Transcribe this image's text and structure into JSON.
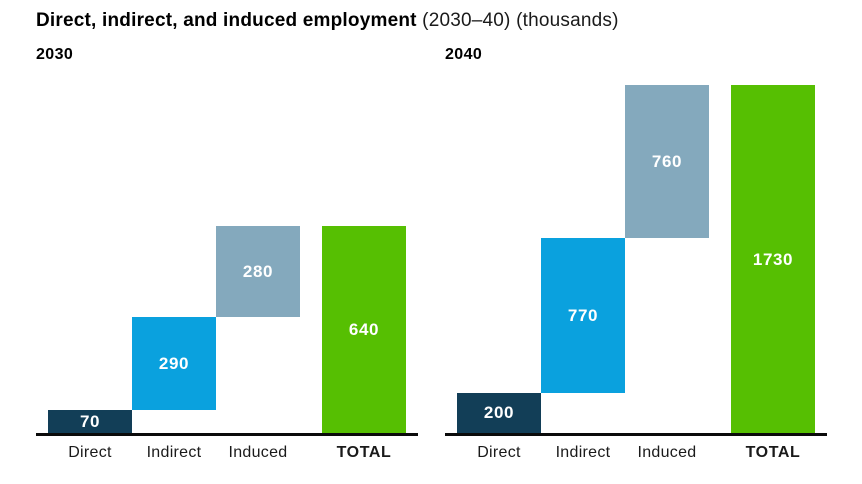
{
  "title": {
    "bold": "Direct, indirect, and induced employment",
    "regular": " (2030–40) (thousands)"
  },
  "colors": {
    "direct": "#123e57",
    "indirect": "#0aa1de",
    "induced": "#84a9bd",
    "total": "#56bf02",
    "axis": "#0b0b0b",
    "value_label": "#ffffff"
  },
  "chart_data": [
    {
      "type": "bar",
      "subtype": "waterfall",
      "year_label": "2030",
      "categories": [
        "Direct",
        "Indirect",
        "Induced",
        "TOTAL"
      ],
      "series": [
        {
          "name": "Direct",
          "role": "direct",
          "value": 70,
          "segment_start": 0,
          "segment_end": 70
        },
        {
          "name": "Indirect",
          "role": "indirect",
          "value": 290,
          "segment_start": 70,
          "segment_end": 360
        },
        {
          "name": "Induced",
          "role": "induced",
          "value": 280,
          "segment_start": 360,
          "segment_end": 640
        },
        {
          "name": "TOTAL",
          "role": "total",
          "value": 640,
          "segment_start": 0,
          "segment_end": 640
        }
      ],
      "values": [
        70,
        290,
        280,
        640
      ],
      "total": 640,
      "ylim": [
        0,
        640
      ],
      "grid": false,
      "legend": false,
      "value_labels": "inside-center"
    },
    {
      "type": "bar",
      "subtype": "waterfall",
      "year_label": "2040",
      "categories": [
        "Direct",
        "Indirect",
        "Induced",
        "TOTAL"
      ],
      "series": [
        {
          "name": "Direct",
          "role": "direct",
          "value": 200,
          "segment_start": 0,
          "segment_end": 200
        },
        {
          "name": "Indirect",
          "role": "indirect",
          "value": 770,
          "segment_start": 200,
          "segment_end": 970
        },
        {
          "name": "Induced",
          "role": "induced",
          "value": 760,
          "segment_start": 970,
          "segment_end": 1730
        },
        {
          "name": "TOTAL",
          "role": "total",
          "value": 1730,
          "segment_start": 0,
          "segment_end": 1730
        }
      ],
      "values": [
        200,
        770,
        760,
        1730
      ],
      "total": 1730,
      "ylim": [
        0,
        1730
      ],
      "grid": false,
      "legend": false,
      "value_labels": "inside-center"
    }
  ]
}
